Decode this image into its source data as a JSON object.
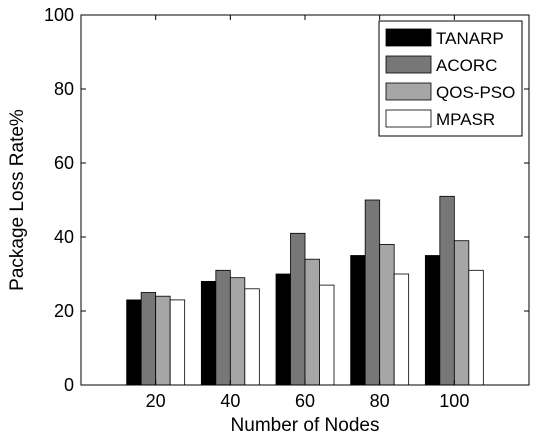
{
  "chart_data": {
    "type": "bar",
    "categories": [
      "20",
      "40",
      "60",
      "80",
      "100"
    ],
    "series": [
      {
        "name": "TANARP",
        "values": [
          23,
          28,
          30,
          35,
          35
        ],
        "color": "#000000"
      },
      {
        "name": "ACORC",
        "values": [
          25,
          31,
          41,
          50,
          51
        ],
        "color": "#777777"
      },
      {
        "name": "QOS-PSO",
        "values": [
          24,
          29,
          34,
          38,
          39
        ],
        "color": "#a6a6a6"
      },
      {
        "name": "MPASR",
        "values": [
          23,
          26,
          27,
          30,
          31
        ],
        "color": "#ffffff"
      }
    ],
    "title": "",
    "xlabel": "Number of Nodes",
    "ylabel": "Package Loss Rate%",
    "ylim": [
      0,
      100
    ],
    "yticks": [
      0,
      20,
      40,
      60,
      80,
      100
    ],
    "grid": false,
    "legend_position": "top-right"
  }
}
